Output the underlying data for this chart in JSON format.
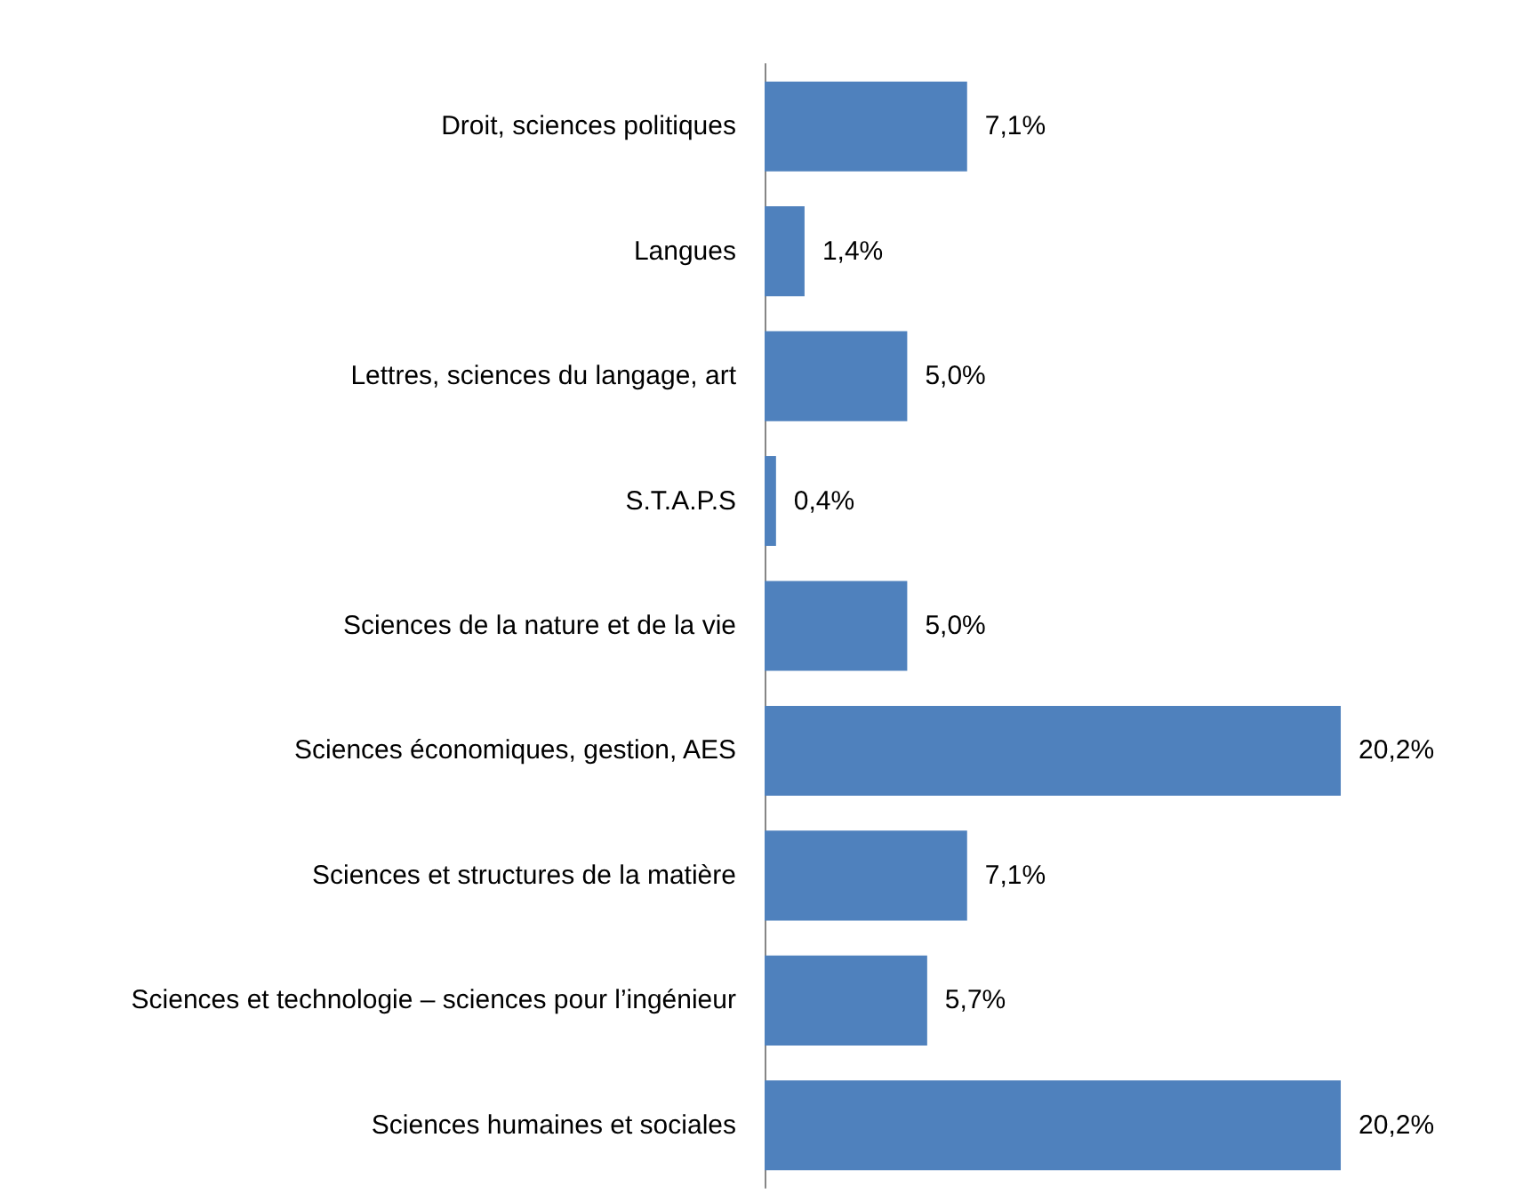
{
  "chart_data": {
    "type": "bar",
    "orientation": "horizontal",
    "categories": [
      "Droit, sciences politiques",
      "Langues",
      "Lettres, sciences du langage, art",
      "S.T.A.P.S",
      "Sciences de la nature et de la vie",
      "Sciences économiques, gestion, AES",
      "Sciences et structures de la matière",
      "Sciences et technologie – sciences pour l’ingénieur",
      "Sciences humaines et sociales"
    ],
    "values": [
      7.1,
      1.4,
      5.0,
      0.4,
      5.0,
      20.2,
      7.1,
      5.7,
      20.2
    ],
    "value_labels": [
      "7,1%",
      "1,4%",
      "5,0%",
      "0,4%",
      "5,0%",
      "20,2%",
      "7,1%",
      "5,7%",
      "20,2%"
    ],
    "color": "#4f81bd",
    "tick_labels": "y"
  }
}
